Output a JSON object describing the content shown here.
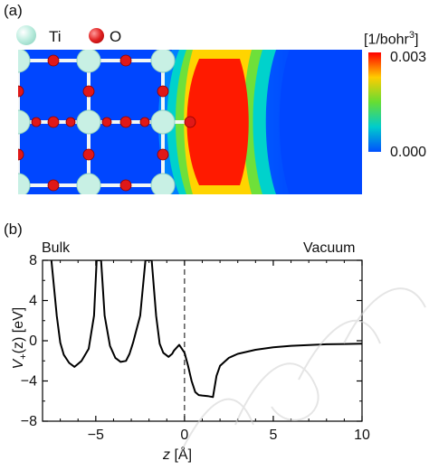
{
  "panel_a": {
    "label": "(a)",
    "legend": [
      {
        "label": "Ti",
        "color": "#bfeee0"
      },
      {
        "label": "O",
        "color": "#e02020"
      }
    ],
    "colorbar": {
      "unit_prefix": "[1/bohr",
      "unit_sup": "3",
      "unit_suffix": "]",
      "max_label": "0.003",
      "min_label": "0.000",
      "colors": [
        "#ff0000",
        "#ffcc00",
        "#66dd33",
        "#00cccc",
        "#0050ff"
      ]
    }
  },
  "panel_b": {
    "label": "(b)",
    "left_label": "Bulk",
    "right_label": "Vacuum",
    "ylabel_v": "V",
    "ylabel_sub": "+",
    "ylabel_rest": "(z) [eV]",
    "xlabel_z": "z",
    "xlabel_rest": " [Å]"
  },
  "chart_data": {
    "type": "line",
    "xlim": [
      -8,
      10
    ],
    "ylim": [
      -8,
      8
    ],
    "xticks": [
      -5,
      0,
      5,
      10
    ],
    "ytick_labels": [
      "8",
      "4",
      "0",
      "−4",
      "−8"
    ],
    "xtick_labels": [
      "−5",
      "0",
      "5",
      "10"
    ],
    "yticks": [
      8,
      4,
      0,
      -4,
      -8
    ],
    "vline_x": 0,
    "series": [
      {
        "x": [
          -7.5,
          -7.2,
          -7.0,
          -6.8,
          -6.5,
          -6.2,
          -6.0,
          -5.8,
          -5.4,
          -5.1,
          -4.95,
          -4.7,
          -4.5,
          -4.2,
          -3.9,
          -3.6,
          -3.3,
          -3.1,
          -2.9,
          -2.5,
          -2.2,
          -2.05,
          -1.85,
          -1.6,
          -1.4,
          -1.2,
          -0.9,
          -0.7,
          -0.6,
          -0.3,
          0.0,
          0.2,
          0.4,
          0.6,
          0.8,
          1.0,
          1.3,
          1.6,
          1.8,
          2.0,
          2.5,
          3.0,
          4.0,
          5.0,
          6.0,
          8.0,
          10.0
        ],
        "y": [
          8.0,
          2.5,
          -0.2,
          -1.4,
          -2.2,
          -2.6,
          -2.3,
          -2.0,
          -0.8,
          2.5,
          8.0,
          8.0,
          2.5,
          -0.5,
          -1.7,
          -2.1,
          -2.0,
          -1.3,
          -0.2,
          2.5,
          8.0,
          8.0,
          8.0,
          2.5,
          -0.3,
          -1.2,
          -1.6,
          -1.3,
          -1.0,
          -0.4,
          -1.2,
          -2.5,
          -4.0,
          -5.1,
          -5.4,
          -5.45,
          -5.5,
          -5.6,
          -3.5,
          -2.5,
          -1.7,
          -1.3,
          -0.9,
          -0.65,
          -0.5,
          -0.35,
          -0.3
        ]
      }
    ]
  }
}
